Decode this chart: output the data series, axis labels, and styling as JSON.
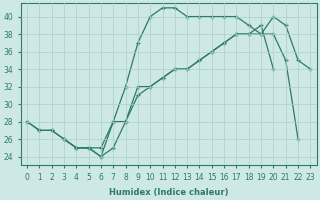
{
  "xlabel": "Humidex (Indice chaleur)",
  "xlim": [
    -0.5,
    23.5
  ],
  "ylim": [
    23,
    41.5
  ],
  "yticks": [
    24,
    26,
    28,
    30,
    32,
    34,
    36,
    38,
    40
  ],
  "xticks": [
    0,
    1,
    2,
    3,
    4,
    5,
    6,
    7,
    8,
    9,
    10,
    11,
    12,
    13,
    14,
    15,
    16,
    17,
    18,
    19,
    20,
    21,
    22,
    23
  ],
  "bg_color": "#cde8e5",
  "grid_color": "#aacfcc",
  "line_color": "#2d7a6e",
  "line1_x": [
    0,
    1,
    2,
    3,
    4,
    5,
    6,
    7,
    8,
    9,
    10,
    11,
    12,
    13,
    14,
    15,
    16,
    17,
    18,
    19,
    20,
    21,
    22
  ],
  "line1_y": [
    28,
    27,
    27,
    26,
    25,
    25,
    24,
    28,
    32,
    37,
    40,
    41,
    41,
    40,
    40,
    40,
    40,
    40,
    39,
    38,
    38,
    35,
    26
  ],
  "line2_x": [
    0,
    1,
    2,
    3,
    4,
    5,
    6,
    7,
    8,
    9,
    10,
    11,
    12,
    13,
    14,
    15,
    16,
    17,
    18,
    19,
    20,
    21,
    22,
    23
  ],
  "line2_y": [
    28,
    27,
    27,
    26,
    25,
    25,
    24,
    25,
    28,
    32,
    32,
    33,
    34,
    34,
    35,
    36,
    37,
    38,
    38,
    39,
    34,
    null,
    null,
    null
  ],
  "line3_x": [
    3,
    4,
    5,
    6,
    7,
    8,
    9,
    10,
    11,
    12,
    13,
    14,
    15,
    16,
    17,
    18,
    19,
    20,
    21,
    22,
    23
  ],
  "line3_y": [
    26,
    25,
    25,
    25,
    28,
    28,
    31,
    32,
    33,
    34,
    34,
    35,
    36,
    37,
    38,
    38,
    38,
    40,
    39,
    35,
    34
  ]
}
